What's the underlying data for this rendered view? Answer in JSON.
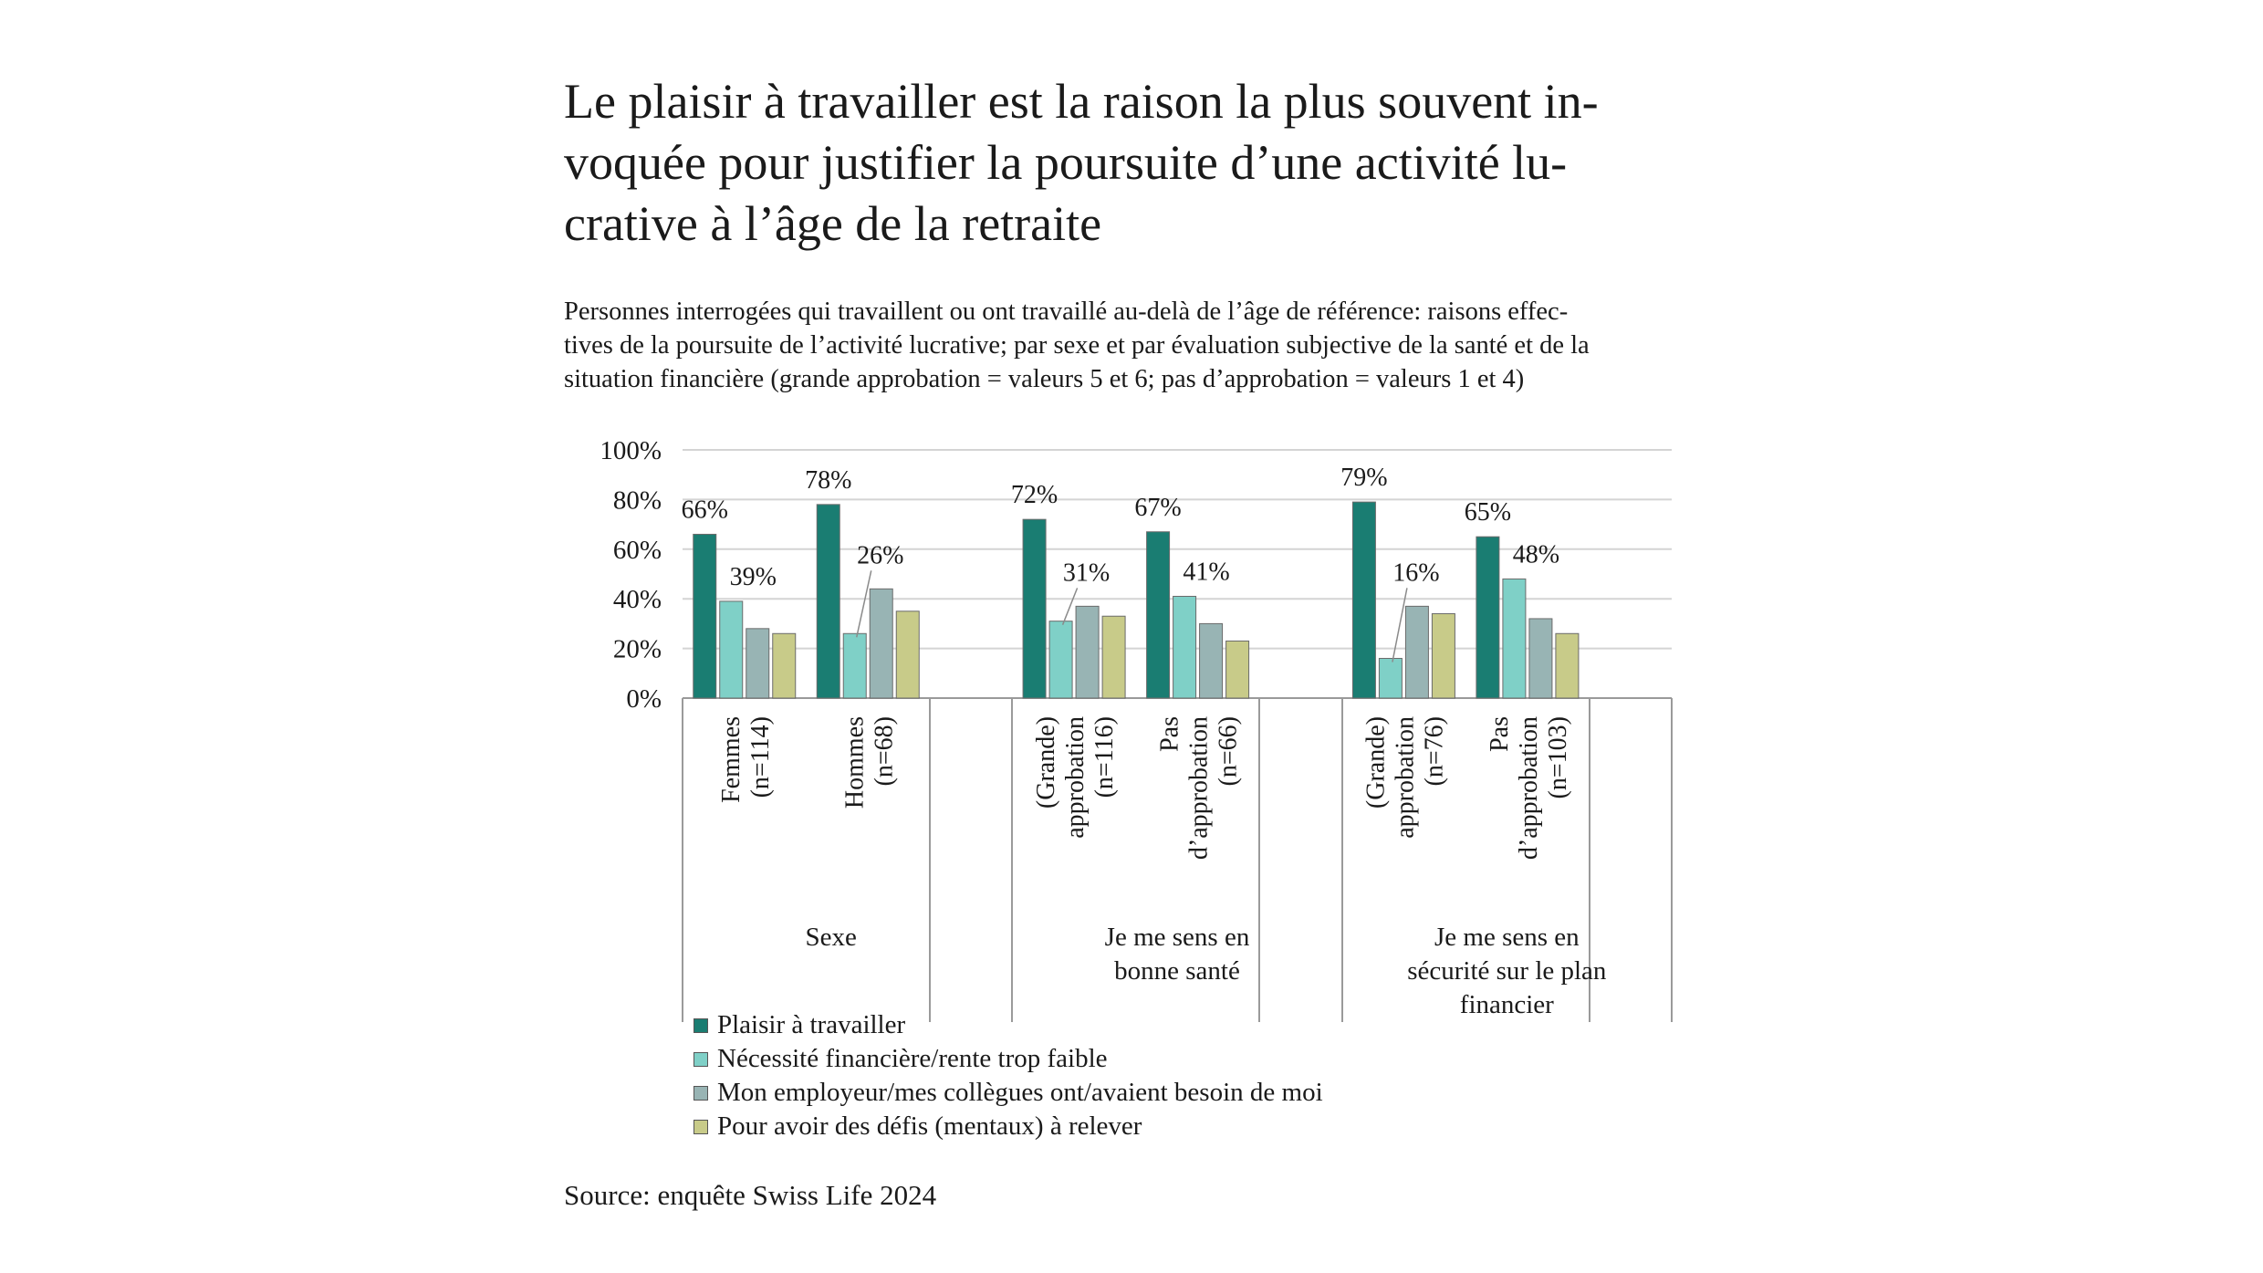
{
  "chart_data": {
    "type": "bar",
    "title": "Le plaisir à travailler est la raison la plus souvent invoquée pour justifier la poursuite d’une activité lucrative à l’âge de la retraite",
    "title_lines": [
      "Le plaisir à travailler est la raison la plus souvent in-",
      "voquée pour justifier la poursuite d’une activité lu-",
      "crative à l’âge de la retraite"
    ],
    "subtitle": "Personnes interrogées qui travaillent ou ont travaillé au-delà de l’âge de référence: raisons effectives de la poursuite de l’activité lucrative; par sexe et par évaluation subjective de la santé et de la situation financière (grande approbation = valeurs 5 et 6; pas d’approbation = valeurs 1 et 4)",
    "subtitle_lines": [
      "Personnes interrogées qui travaillent ou ont travaillé au-delà de l’âge de référence: raisons effec-",
      "tives de la poursuite de l’activité lucrative; par sexe et par évaluation subjective de la santé et de la",
      "situation financière (grande approbation = valeurs 5 et 6; pas d’approbation = valeurs 1 et 4)"
    ],
    "ylim": [
      0,
      100
    ],
    "y_ticks": [
      0,
      20,
      40,
      60,
      80,
      100
    ],
    "y_tick_labels": [
      "0%",
      "20%",
      "40%",
      "60%",
      "80%",
      "100%"
    ],
    "grid": true,
    "legend_position": "bottom-left",
    "groups": [
      {
        "label_lines": [
          "Sexe"
        ],
        "categories": [
          0,
          1
        ]
      },
      {
        "label_lines": [
          "Je me sens en",
          "bonne santé"
        ],
        "categories": [
          2,
          3
        ]
      },
      {
        "label_lines": [
          "Je me sens en",
          "sécurité sur le plan",
          "financier"
        ],
        "categories": [
          4,
          5
        ]
      }
    ],
    "categories": [
      {
        "label_lines": [
          "Femmes",
          "(n=114)"
        ]
      },
      {
        "label_lines": [
          "Hommes",
          "(n=68)"
        ]
      },
      {
        "label_lines": [
          "(Grande)",
          "approbation",
          "(n=116)"
        ]
      },
      {
        "label_lines": [
          "Pas",
          "d’approbation",
          "(n=66)"
        ]
      },
      {
        "label_lines": [
          "(Grande)",
          "approbation",
          "(n=76)"
        ]
      },
      {
        "label_lines": [
          "Pas",
          "d’approbation",
          "(n=103)"
        ]
      }
    ],
    "series": [
      {
        "name": "Plaisir à travailler",
        "color": "#1a7d72",
        "values": [
          66,
          78,
          72,
          67,
          79,
          65
        ],
        "data_labels": [
          "66%",
          "78%",
          "72%",
          "67%",
          "79%",
          "65%"
        ]
      },
      {
        "name": "Nécessité financière/rente trop faible",
        "color": "#7fd0c7",
        "values": [
          39,
          26,
          31,
          41,
          16,
          48
        ],
        "data_labels": [
          "39%",
          "26%",
          "31%",
          "41%",
          "16%",
          "48%"
        ]
      },
      {
        "name": "Mon employeur/mes collègues ont/avaient besoin de moi",
        "color": "#98b4b4",
        "values": [
          28,
          44,
          37,
          30,
          37,
          32
        ],
        "data_labels": []
      },
      {
        "name": "Pour avoir des défis (mentaux) à relever",
        "color": "#c8cb89",
        "values": [
          26,
          35,
          33,
          23,
          34,
          26
        ],
        "data_labels": []
      }
    ]
  },
  "source": "Source: enquête Swiss Life 2024"
}
